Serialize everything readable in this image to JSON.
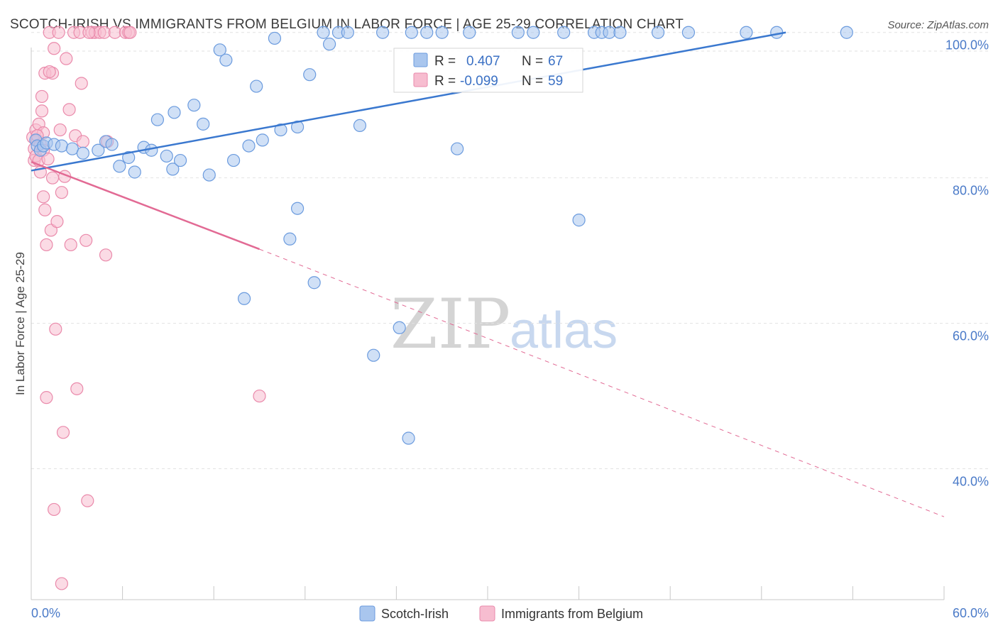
{
  "header": {
    "title": "SCOTCH-IRISH VS IMMIGRANTS FROM BELGIUM IN LABOR FORCE | AGE 25-29 CORRELATION CHART",
    "source": "Source: ZipAtlas.com"
  },
  "watermark": {
    "zip": "ZIP",
    "atlas": "atlas"
  },
  "colors": {
    "blue_fill": "#a9c6ee",
    "blue_stroke": "#6b9bde",
    "blue_line": "#3a78cf",
    "pink_fill": "#f7bdd0",
    "pink_stroke": "#ea8aab",
    "pink_line": "#e26a94",
    "grid": "#e2e2e2",
    "tick_text": "#4a7ac8"
  },
  "legend_box": {
    "rows": [
      {
        "series": "Scotch-Irish",
        "r_label": "R =",
        "r_value": "0.407",
        "n_label": "N =",
        "n_value": "67"
      },
      {
        "series": "Immigrants from Belgium",
        "r_label": "R =",
        "r_value": "-0.099",
        "n_label": "N =",
        "n_value": "59"
      }
    ]
  },
  "bottom_legend": [
    {
      "label": "Scotch-Irish"
    },
    {
      "label": "Immigrants from Belgium"
    }
  ],
  "chart_data": {
    "type": "scatter",
    "title": "SCOTCH-IRISH VS IMMIGRANTS FROM BELGIUM IN LABOR FORCE | AGE 25-29 CORRELATION CHART",
    "xlabel": "",
    "ylabel": "In Labor Force | Age 25-29",
    "xlim": [
      0,
      60
    ],
    "ylim": [
      22,
      103
    ],
    "x_tick_labels": [
      "0.0%",
      "60.0%"
    ],
    "y_ticks": [
      40,
      60,
      80,
      100
    ],
    "y_tick_labels": [
      "40.0%",
      "60.0%",
      "80.0%",
      "100.0%"
    ],
    "grid": true,
    "series": [
      {
        "name": "Scotch-Irish",
        "r": 0.407,
        "n": 67,
        "trend": {
          "x0": 0,
          "y0": 81.0,
          "x1": 49.6,
          "y1": 100.0,
          "dashed_to": null
        },
        "points": [
          [
            0.3,
            85.2
          ],
          [
            0.4,
            84.4
          ],
          [
            0.6,
            83.8
          ],
          [
            0.8,
            84.4
          ],
          [
            1.0,
            84.8
          ],
          [
            1.5,
            84.6
          ],
          [
            2.0,
            84.4
          ],
          [
            2.7,
            84.0
          ],
          [
            3.4,
            83.4
          ],
          [
            4.4,
            83.8
          ],
          [
            4.9,
            85.0
          ],
          [
            5.3,
            84.6
          ],
          [
            5.8,
            81.6
          ],
          [
            6.4,
            82.8
          ],
          [
            6.8,
            80.8
          ],
          [
            7.4,
            84.2
          ],
          [
            7.9,
            83.8
          ],
          [
            8.3,
            88.0
          ],
          [
            8.9,
            83.0
          ],
          [
            9.3,
            81.2
          ],
          [
            9.4,
            89.0
          ],
          [
            9.8,
            82.4
          ],
          [
            10.7,
            90.0
          ],
          [
            11.3,
            87.4
          ],
          [
            11.7,
            80.4
          ],
          [
            12.4,
            97.6
          ],
          [
            12.8,
            96.2
          ],
          [
            13.3,
            82.4
          ],
          [
            14.0,
            63.4
          ],
          [
            14.3,
            84.4
          ],
          [
            14.8,
            92.6
          ],
          [
            15.2,
            85.2
          ],
          [
            16.0,
            99.2
          ],
          [
            16.4,
            86.6
          ],
          [
            17.0,
            71.6
          ],
          [
            17.5,
            75.8
          ],
          [
            17.5,
            87.0
          ],
          [
            18.3,
            94.2
          ],
          [
            18.6,
            65.6
          ],
          [
            19.2,
            100.0
          ],
          [
            19.6,
            98.4
          ],
          [
            20.2,
            100.0
          ],
          [
            20.8,
            100.0
          ],
          [
            21.6,
            87.2
          ],
          [
            22.5,
            55.6
          ],
          [
            23.1,
            100.0
          ],
          [
            24.2,
            59.4
          ],
          [
            24.8,
            44.2
          ],
          [
            25.0,
            100.0
          ],
          [
            26.0,
            100.0
          ],
          [
            27.0,
            100.0
          ],
          [
            28.0,
            84.0
          ],
          [
            28.8,
            100.0
          ],
          [
            30.0,
            95.6
          ],
          [
            32.0,
            100.0
          ],
          [
            33.0,
            100.0
          ],
          [
            35.0,
            100.0
          ],
          [
            36.0,
            74.2
          ],
          [
            37.0,
            100.0
          ],
          [
            37.5,
            100.0
          ],
          [
            38.0,
            100.0
          ],
          [
            38.7,
            100.0
          ],
          [
            41.2,
            100.0
          ],
          [
            43.2,
            100.0
          ],
          [
            47.0,
            100.0
          ],
          [
            49.0,
            100.0
          ],
          [
            53.6,
            100.0
          ]
        ]
      },
      {
        "name": "Immigrants from Belgium",
        "r": -0.099,
        "n": 59,
        "trend": {
          "x0": 0,
          "y0": 82.2,
          "x1": 15.0,
          "y1": 70.2,
          "dashed_to": [
            60,
            33.4
          ]
        },
        "points": [
          [
            0.1,
            85.6
          ],
          [
            0.2,
            84.0
          ],
          [
            0.2,
            82.4
          ],
          [
            0.3,
            86.6
          ],
          [
            0.3,
            83.0
          ],
          [
            0.4,
            85.2
          ],
          [
            0.5,
            82.4
          ],
          [
            0.5,
            87.4
          ],
          [
            0.6,
            80.8
          ],
          [
            0.6,
            84.6
          ],
          [
            0.7,
            89.2
          ],
          [
            0.7,
            91.2
          ],
          [
            0.8,
            86.2
          ],
          [
            0.8,
            83.8
          ],
          [
            0.8,
            77.4
          ],
          [
            0.9,
            75.6
          ],
          [
            0.9,
            94.4
          ],
          [
            1.0,
            70.8
          ],
          [
            1.0,
            49.8
          ],
          [
            1.1,
            82.6
          ],
          [
            1.2,
            100.0
          ],
          [
            1.3,
            72.8
          ],
          [
            1.4,
            80.0
          ],
          [
            1.4,
            94.4
          ],
          [
            1.5,
            97.8
          ],
          [
            1.5,
            34.4
          ],
          [
            1.6,
            59.2
          ],
          [
            1.7,
            74.0
          ],
          [
            1.8,
            100.0
          ],
          [
            1.9,
            86.6
          ],
          [
            2.0,
            78.0
          ],
          [
            2.1,
            45.0
          ],
          [
            2.2,
            80.2
          ],
          [
            2.3,
            96.4
          ],
          [
            2.5,
            89.4
          ],
          [
            2.6,
            70.8
          ],
          [
            2.8,
            100.0
          ],
          [
            2.9,
            85.8
          ],
          [
            3.0,
            51.0
          ],
          [
            3.2,
            100.0
          ],
          [
            3.3,
            93.0
          ],
          [
            3.4,
            85.0
          ],
          [
            3.6,
            71.4
          ],
          [
            3.7,
            35.6
          ],
          [
            4.0,
            100.0
          ],
          [
            4.2,
            100.0
          ],
          [
            4.5,
            100.0
          ],
          [
            4.8,
            100.0
          ],
          [
            5.0,
            85.0
          ],
          [
            3.8,
            100.0
          ],
          [
            2.0,
            24.2
          ],
          [
            5.5,
            100.0
          ],
          [
            6.2,
            100.0
          ],
          [
            6.4,
            100.0
          ],
          [
            6.5,
            100.0
          ],
          [
            15.0,
            50.0
          ],
          [
            4.9,
            69.4
          ],
          [
            1.2,
            94.6
          ],
          [
            0.4,
            85.8
          ]
        ]
      }
    ]
  }
}
